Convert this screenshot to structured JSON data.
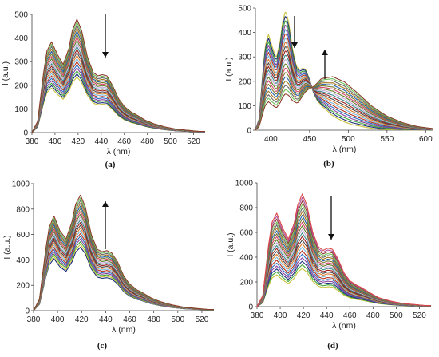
{
  "chart_data": [
    {
      "id": "a",
      "type": "line",
      "panel_label": "(a)",
      "xlabel": "λ (nm)",
      "ylabel": "I (a.u.)",
      "xlim": [
        380,
        530
      ],
      "ylim": [
        0,
        500
      ],
      "xticks": [
        380,
        400,
        420,
        440,
        460,
        480,
        500,
        520
      ],
      "yticks": [
        0,
        100,
        200,
        300,
        400,
        500
      ],
      "spectrum": {
        "x": [
          380,
          385,
          390,
          393,
          397,
          402,
          407,
          412,
          415,
          419,
          423,
          428,
          433,
          437,
          441,
          445,
          450,
          455,
          460,
          466,
          470,
          478,
          485,
          495,
          505,
          515,
          525,
          530
        ],
        "y": [
          0,
          0.1,
          0.52,
          0.72,
          0.8,
          0.69,
          0.6,
          0.74,
          0.9,
          1.0,
          0.9,
          0.67,
          0.53,
          0.5,
          0.51,
          0.5,
          0.41,
          0.3,
          0.23,
          0.18,
          0.16,
          0.11,
          0.08,
          0.05,
          0.03,
          0.02,
          0.01,
          0.01
        ]
      },
      "series_peak_range": [
        235,
        480
      ],
      "series_count": 20,
      "arrow": "down",
      "colors": [
        "#c9c23a",
        "#1c2f7a",
        "#3ca43a",
        "#8a3f9e",
        "#2d6fbf",
        "#b8321c",
        "#7ab8d9",
        "#e07b2a",
        "#4a4a4a",
        "#9c1f1f",
        "#3b8c8c",
        "#c2a8d9",
        "#5e7e26",
        "#d6436e",
        "#7a7a2b",
        "#1f5fa8",
        "#a6761d",
        "#666666",
        "#6ebf5a",
        "#8c3a2c"
      ]
    },
    {
      "id": "b",
      "type": "line",
      "panel_label": "(b)",
      "xlabel": "λ (nm)",
      "ylabel": "I (a.u.)",
      "xlim": [
        380,
        610
      ],
      "ylim": [
        0,
        500
      ],
      "xticks": [
        400,
        450,
        500,
        550,
        600
      ],
      "yticks": [
        0,
        100,
        200,
        300,
        400,
        500
      ],
      "monomer": {
        "x": [
          380,
          385,
          390,
          393,
          397,
          402,
          407,
          412,
          415,
          419,
          423,
          428,
          433,
          437,
          441,
          445,
          450,
          455,
          460,
          466,
          470,
          478,
          485,
          495,
          505,
          515,
          525,
          540,
          560,
          580,
          600,
          610
        ],
        "y": [
          0,
          0.1,
          0.52,
          0.72,
          0.8,
          0.69,
          0.6,
          0.74,
          0.9,
          1.0,
          0.9,
          0.67,
          0.53,
          0.5,
          0.51,
          0.5,
          0.41,
          0.3,
          0.23,
          0.18,
          0.16,
          0.11,
          0.08,
          0.05,
          0.03,
          0.02,
          0.01,
          0.0,
          0.0,
          0.0,
          0.0,
          0.0
        ]
      },
      "excimer": {
        "x": [
          380,
          420,
          435,
          450,
          465,
          480,
          495,
          510,
          530,
          550,
          570,
          590,
          610
        ],
        "y": [
          0,
          0.05,
          0.2,
          0.55,
          0.9,
          1.0,
          0.93,
          0.75,
          0.48,
          0.28,
          0.15,
          0.07,
          0.03
        ]
      },
      "monomer_peak_range": [
        140,
        490
      ],
      "excimer_peak_range": [
        10,
        205
      ],
      "series_count": 20,
      "arrows": [
        "down",
        "up"
      ],
      "colors": [
        "#c9c23a",
        "#1c2f7a",
        "#3ca43a",
        "#8a3f9e",
        "#2d6fbf",
        "#b8321c",
        "#7ab8d9",
        "#e07b2a",
        "#4a4a4a",
        "#9c1f1f",
        "#3b8c8c",
        "#c2a8d9",
        "#5e7e26",
        "#d6436e",
        "#7a7a2b",
        "#1f5fa8",
        "#a6761d",
        "#666666",
        "#6ebf5a",
        "#8c3a2c"
      ]
    },
    {
      "id": "c",
      "type": "line",
      "panel_label": "(c)",
      "xlabel": "λ (nm)",
      "ylabel": "I (a.u.)",
      "xlim": [
        380,
        530
      ],
      "ylim": [
        0,
        1000
      ],
      "xticks": [
        380,
        400,
        420,
        440,
        460,
        480,
        500,
        520
      ],
      "yticks": [
        0,
        200,
        400,
        600,
        800,
        1000
      ],
      "spectrum": {
        "x": [
          380,
          385,
          390,
          393,
          397,
          402,
          407,
          412,
          415,
          419,
          423,
          428,
          433,
          437,
          441,
          445,
          450,
          455,
          460,
          466,
          470,
          478,
          485,
          495,
          505,
          515,
          525,
          530
        ],
        "y": [
          0,
          0.1,
          0.52,
          0.72,
          0.82,
          0.69,
          0.62,
          0.77,
          0.92,
          1.0,
          0.9,
          0.66,
          0.53,
          0.51,
          0.52,
          0.5,
          0.42,
          0.3,
          0.23,
          0.18,
          0.16,
          0.11,
          0.08,
          0.05,
          0.03,
          0.02,
          0.01,
          0.01
        ]
      },
      "series_peak_range": [
        500,
        910
      ],
      "series_count": 20,
      "arrow": "up",
      "colors": [
        "#1c2f7a",
        "#c9c23a",
        "#3ca43a",
        "#8a3f9e",
        "#2d6fbf",
        "#b8321c",
        "#7ab8d9",
        "#e07b2a",
        "#4a4a4a",
        "#9c1f1f",
        "#3b8c8c",
        "#c2a8d9",
        "#5e7e26",
        "#d6436e",
        "#7a7a2b",
        "#1f5fa8",
        "#a6761d",
        "#666666",
        "#6ebf5a",
        "#8c3a2c"
      ]
    },
    {
      "id": "d",
      "type": "line",
      "panel_label": "(d)",
      "xlabel": "λ (nm)",
      "ylabel": "I (a.u.)",
      "xlim": [
        380,
        530
      ],
      "ylim": [
        0,
        1000
      ],
      "xticks": [
        380,
        400,
        420,
        440,
        460,
        480,
        500,
        520
      ],
      "yticks": [
        0,
        200,
        400,
        600,
        800,
        1000
      ],
      "spectrum": {
        "x": [
          380,
          385,
          390,
          393,
          397,
          402,
          407,
          412,
          415,
          419,
          423,
          428,
          433,
          437,
          441,
          445,
          450,
          455,
          460,
          466,
          470,
          478,
          485,
          495,
          505,
          515,
          525,
          530
        ],
        "y": [
          0,
          0.1,
          0.55,
          0.75,
          0.83,
          0.7,
          0.6,
          0.74,
          0.9,
          1.0,
          0.9,
          0.66,
          0.53,
          0.5,
          0.52,
          0.51,
          0.42,
          0.3,
          0.23,
          0.19,
          0.17,
          0.12,
          0.08,
          0.05,
          0.03,
          0.02,
          0.01,
          0.01
        ]
      },
      "series_peak_range": [
        310,
        910
      ],
      "series_count": 22,
      "arrow": "down",
      "colors": [
        "#c9c23a",
        "#3ca43a",
        "#1c2f7a",
        "#8a3f9e",
        "#2d6fbf",
        "#b8321c",
        "#7ab8d9",
        "#e07b2a",
        "#4a4a4a",
        "#9c1f1f",
        "#3b8c8c",
        "#c2a8d9",
        "#5e7e26",
        "#d6436e",
        "#7a7a2b",
        "#1f5fa8",
        "#a6761d",
        "#666666",
        "#6ebf5a",
        "#8c3a2c",
        "#b04fa0",
        "#d94848"
      ]
    }
  ]
}
